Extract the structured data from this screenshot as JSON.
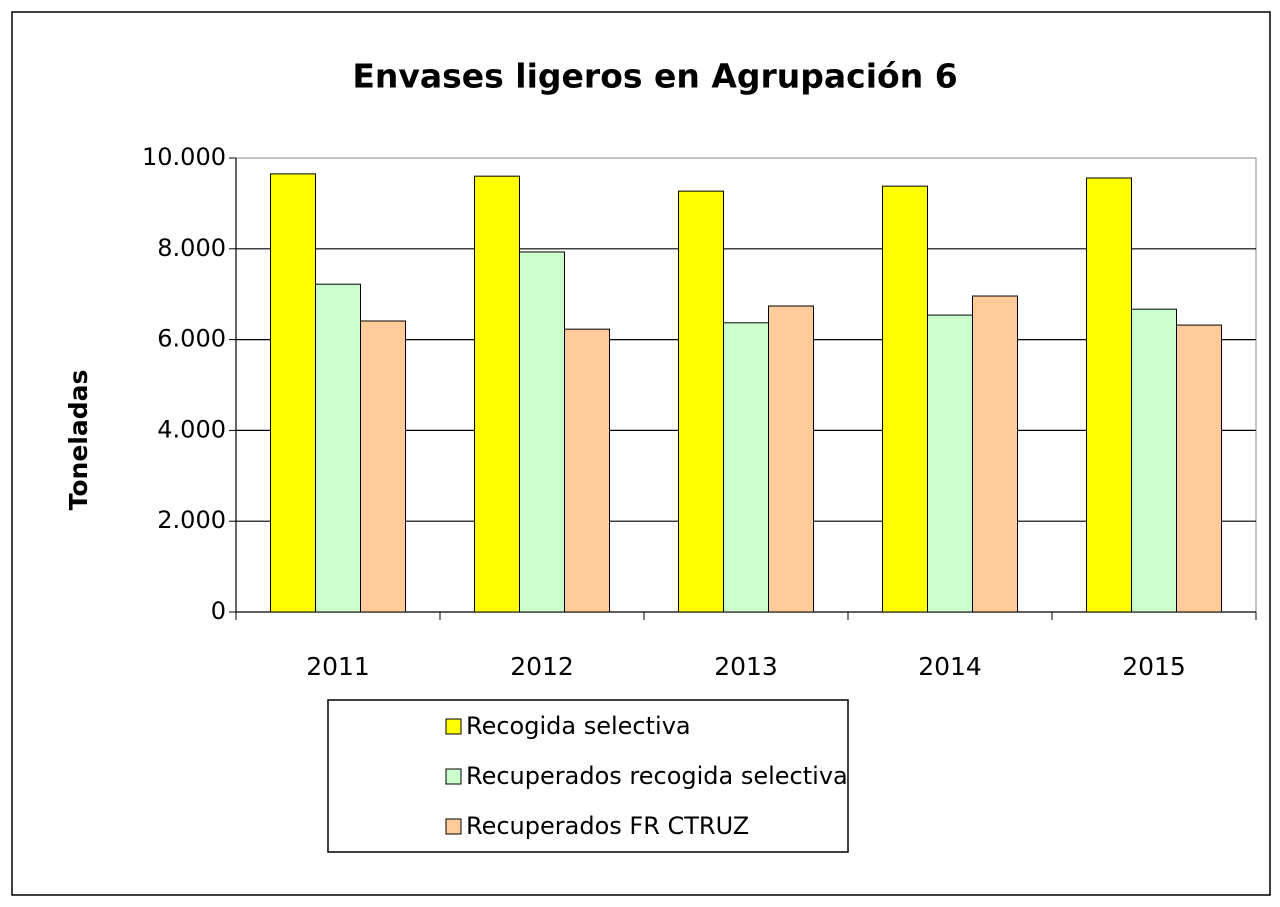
{
  "chart_data": {
    "type": "bar",
    "title": "Envases ligeros en Agrupación 6",
    "y_label": "Toneladas",
    "categories": [
      "2011",
      "2012",
      "2013",
      "2014",
      "2015"
    ],
    "series": [
      {
        "name": "Recogida selectiva",
        "color": "#ffff00",
        "values": [
          9650,
          9600,
          9270,
          9380,
          9560
        ]
      },
      {
        "name": "Recuperados recogida selectiva",
        "color": "#ccffcc",
        "values": [
          7220,
          7930,
          6370,
          6540,
          6670
        ]
      },
      {
        "name": "Recuperados FR CTRUZ",
        "color": "#ffcc99",
        "values": [
          6410,
          6230,
          6740,
          6960,
          6320
        ]
      }
    ],
    "ylim": [
      0,
      10000
    ],
    "yticks": [
      0,
      {
        "value": 2000,
        "label": "2.000"
      },
      {
        "value": 4000,
        "label": "4.000"
      },
      {
        "value": 6000,
        "label": "6.000"
      },
      {
        "value": 8000,
        "label": "8.000"
      },
      {
        "value": 10000,
        "label": "10.000"
      }
    ],
    "grid": true,
    "legend": "bottom"
  }
}
